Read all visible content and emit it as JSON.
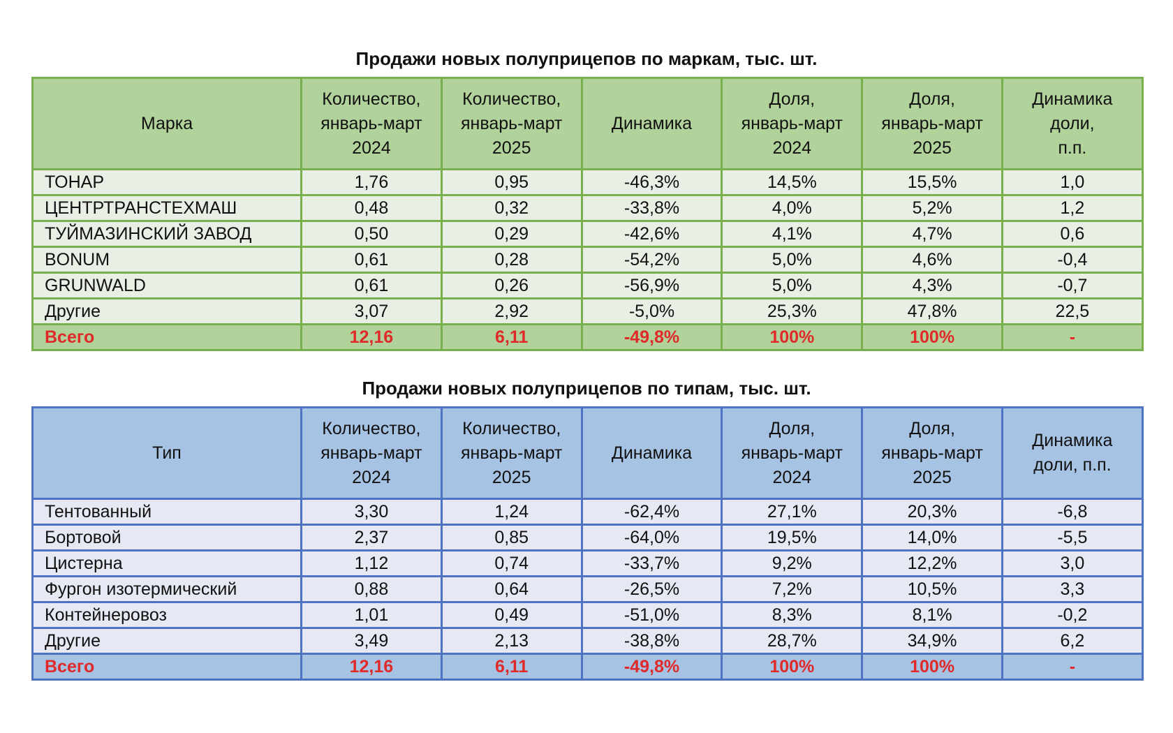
{
  "brands_table": {
    "title": "Продажи новых полуприцепов по маркам, тыс. шт.",
    "headers": [
      [
        "Марка"
      ],
      [
        "Количество,",
        "январь-март",
        "2024"
      ],
      [
        "Количество,",
        "январь-март",
        "2025"
      ],
      [
        "Динамика"
      ],
      [
        "Доля,",
        "январь-март",
        "2024"
      ],
      [
        "Доля,",
        "январь-март",
        "2025"
      ],
      [
        "Динамика",
        "доли,",
        "п.п."
      ]
    ],
    "rows": [
      [
        "ТОНАР",
        "1,76",
        "0,95",
        "-46,3%",
        "14,5%",
        "15,5%",
        "1,0"
      ],
      [
        "ЦЕНТРТРАНСТЕХМАШ",
        "0,48",
        "0,32",
        "-33,8%",
        "4,0%",
        "5,2%",
        "1,2"
      ],
      [
        "ТУЙМАЗИНСКИЙ ЗАВОД",
        "0,50",
        "0,29",
        "-42,6%",
        "4,1%",
        "4,7%",
        "0,6"
      ],
      [
        "BONUM",
        "0,61",
        "0,28",
        "-54,2%",
        "5,0%",
        "4,6%",
        "-0,4"
      ],
      [
        "GRUNWALD",
        "0,61",
        "0,26",
        "-56,9%",
        "5,0%",
        "4,3%",
        "-0,7"
      ],
      [
        "Другие",
        "3,07",
        "2,92",
        "-5,0%",
        "25,3%",
        "47,8%",
        "22,5"
      ]
    ],
    "total": [
      "Всего",
      "12,16",
      "6,11",
      "-49,8%",
      "100%",
      "100%",
      "-"
    ]
  },
  "types_table": {
    "title": "Продажи новых полуприцепов по типам, тыс. шт.",
    "headers": [
      [
        "Тип"
      ],
      [
        "Количество,",
        "январь-март",
        "2024"
      ],
      [
        "Количество,",
        "январь-март",
        "2025"
      ],
      [
        "Динамика"
      ],
      [
        "Доля,",
        "январь-март",
        "2024"
      ],
      [
        "Доля,",
        "январь-март",
        "2025"
      ],
      [
        "Динамика",
        "доли, п.п."
      ]
    ],
    "rows": [
      [
        "Тентованный",
        "3,30",
        "1,24",
        "-62,4%",
        "27,1%",
        "20,3%",
        "-6,8"
      ],
      [
        "Бортовой",
        "2,37",
        "0,85",
        "-64,0%",
        "19,5%",
        "14,0%",
        "-5,5"
      ],
      [
        "Цистерна",
        "1,12",
        "0,74",
        "-33,7%",
        "9,2%",
        "12,2%",
        "3,0"
      ],
      [
        "Фургон изотермический",
        "0,88",
        "0,64",
        "-26,5%",
        "7,2%",
        "10,5%",
        "3,3"
      ],
      [
        "Контейнеровоз",
        "1,01",
        "0,49",
        "-51,0%",
        "8,3%",
        "8,1%",
        "-0,2"
      ],
      [
        "Другие",
        "3,49",
        "2,13",
        "-38,8%",
        "28,7%",
        "34,9%",
        "6,2"
      ]
    ],
    "total": [
      "Всего",
      "12,16",
      "6,11",
      "-49,8%",
      "100%",
      "100%",
      "-"
    ]
  },
  "colors": {
    "green_header": "#b1d29a",
    "green_border": "#78b04e",
    "green_row": "#e9efe4",
    "blue_header": "#a7c3e4",
    "blue_border": "#4e73c2",
    "blue_row": "#e6e9f3",
    "total_text": "#e02a2a"
  }
}
